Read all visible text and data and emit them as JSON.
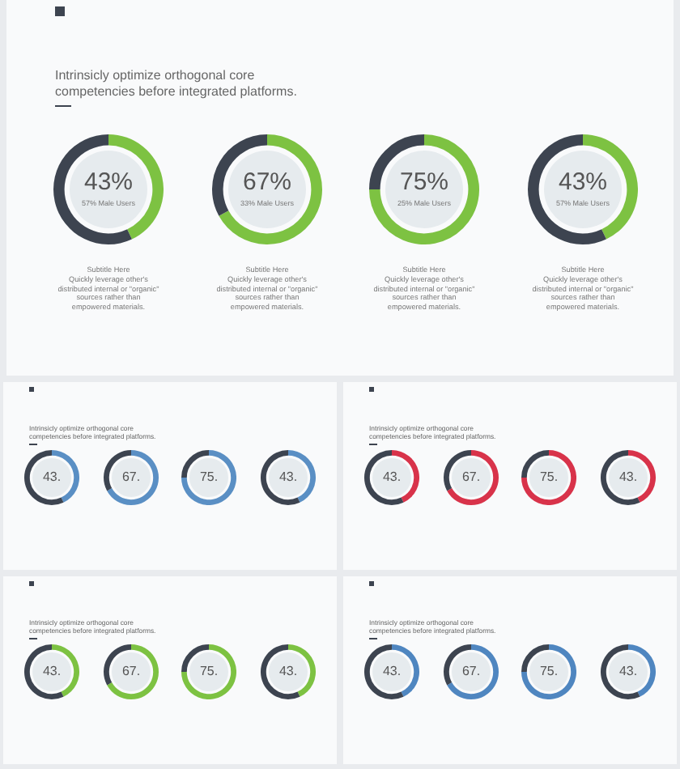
{
  "chart_data": [
    {
      "type": "donut",
      "title": "Intrinsicly optimize orthogonal core competencies before integrated platforms.",
      "categories": [
        null,
        null
      ],
      "values": [
        43,
        57
      ],
      "colors": [
        "#7dc242",
        "#3d4450"
      ],
      "value_labels": [
        "43%",
        null
      ],
      "annotations": [
        "57% Male Users",
        "Subtitle Here",
        "Quickly leverage other's distributed internal or \"organic\" sources rather than empowered materials."
      ]
    },
    {
      "type": "donut",
      "categories": [
        null,
        null
      ],
      "values": [
        67,
        33
      ],
      "colors": [
        "#7dc242",
        "#3d4450"
      ],
      "value_labels": [
        "67%",
        null
      ],
      "annotations": [
        "33% Male Users",
        "Subtitle Here",
        "Quickly leverage other's distributed internal or \"organic\" sources rather than empowered materials."
      ]
    },
    {
      "type": "donut",
      "categories": [
        null,
        null
      ],
      "values": [
        75,
        25
      ],
      "colors": [
        "#7dc242",
        "#3d4450"
      ],
      "value_labels": [
        "75%",
        null
      ],
      "annotations": [
        "25% Male Users",
        "Subtitle Here",
        "Quickly leverage other's distributed internal or \"organic\" sources rather than empowered materials."
      ]
    },
    {
      "type": "donut",
      "categories": [
        null,
        null
      ],
      "values": [
        43,
        57
      ],
      "colors": [
        "#7dc242",
        "#3d4450"
      ],
      "value_labels": [
        "43%",
        null
      ],
      "annotations": [
        "57% Male Users",
        "Subtitle Here",
        "Quickly leverage other's distributed internal or \"organic\" sources rather than empowered materials."
      ]
    },
    {
      "type": "donut",
      "title": "Intrinsicly optimize orthogonal core competencies before integrated platforms.",
      "categories": [
        null,
        null
      ],
      "values": [
        43,
        57
      ],
      "colors": [
        "#5a8fc4",
        "#3d4450"
      ],
      "value_labels": [
        "43.",
        null
      ]
    },
    {
      "type": "donut",
      "categories": [
        null,
        null
      ],
      "values": [
        67,
        33
      ],
      "colors": [
        "#5a8fc4",
        "#3d4450"
      ],
      "value_labels": [
        "67.",
        null
      ]
    },
    {
      "type": "donut",
      "categories": [
        null,
        null
      ],
      "values": [
        75,
        25
      ],
      "colors": [
        "#5a8fc4",
        "#3d4450"
      ],
      "value_labels": [
        "75.",
        null
      ]
    },
    {
      "type": "donut",
      "categories": [
        null,
        null
      ],
      "values": [
        43,
        57
      ],
      "colors": [
        "#5a8fc4",
        "#3d4450"
      ],
      "value_labels": [
        "43.",
        null
      ]
    },
    {
      "type": "donut",
      "title": "Intrinsicly optimize orthogonal core competencies before integrated platforms.",
      "categories": [
        null,
        null
      ],
      "values": [
        43,
        57
      ],
      "colors": [
        "#d8334a",
        "#3d4450"
      ],
      "value_labels": [
        "43.",
        null
      ]
    },
    {
      "type": "donut",
      "categories": [
        null,
        null
      ],
      "values": [
        67,
        33
      ],
      "colors": [
        "#d8334a",
        "#3d4450"
      ],
      "value_labels": [
        "67.",
        null
      ]
    },
    {
      "type": "donut",
      "categories": [
        null,
        null
      ],
      "values": [
        75,
        25
      ],
      "colors": [
        "#d8334a",
        "#3d4450"
      ],
      "value_labels": [
        "75.",
        null
      ]
    },
    {
      "type": "donut",
      "categories": [
        null,
        null
      ],
      "values": [
        43,
        57
      ],
      "colors": [
        "#d8334a",
        "#3d4450"
      ],
      "value_labels": [
        "43.",
        null
      ]
    },
    {
      "type": "donut",
      "title": "Intrinsicly optimize orthogonal core competencies before integrated platforms.",
      "categories": [
        null,
        null
      ],
      "values": [
        43,
        57
      ],
      "colors": [
        "#7dc242",
        "#3d4450"
      ],
      "value_labels": [
        "43.",
        null
      ]
    },
    {
      "type": "donut",
      "categories": [
        null,
        null
      ],
      "values": [
        67,
        33
      ],
      "colors": [
        "#7dc242",
        "#3d4450"
      ],
      "value_labels": [
        "67.",
        null
      ]
    },
    {
      "type": "donut",
      "categories": [
        null,
        null
      ],
      "values": [
        75,
        25
      ],
      "colors": [
        "#7dc242",
        "#3d4450"
      ],
      "value_labels": [
        "75.",
        null
      ]
    },
    {
      "type": "donut",
      "categories": [
        null,
        null
      ],
      "values": [
        43,
        57
      ],
      "colors": [
        "#7dc242",
        "#3d4450"
      ],
      "value_labels": [
        "43.",
        null
      ]
    },
    {
      "type": "donut",
      "title": "Intrinsicly optimize orthogonal core competencies before integrated platforms.",
      "categories": [
        null,
        null
      ],
      "values": [
        43,
        57
      ],
      "colors": [
        "#4f86c0",
        "#3d4450"
      ],
      "value_labels": [
        "43.",
        null
      ]
    },
    {
      "type": "donut",
      "categories": [
        null,
        null
      ],
      "values": [
        67,
        33
      ],
      "colors": [
        "#4f86c0",
        "#3d4450"
      ],
      "value_labels": [
        "67.",
        null
      ]
    },
    {
      "type": "donut",
      "categories": [
        null,
        null
      ],
      "values": [
        75,
        25
      ],
      "colors": [
        "#4f86c0",
        "#3d4450"
      ],
      "value_labels": [
        "75.",
        null
      ]
    },
    {
      "type": "donut",
      "categories": [
        null,
        null
      ],
      "values": [
        43,
        57
      ],
      "colors": [
        "#4f86c0",
        "#3d4450"
      ],
      "value_labels": [
        "43.",
        null
      ]
    }
  ]
}
